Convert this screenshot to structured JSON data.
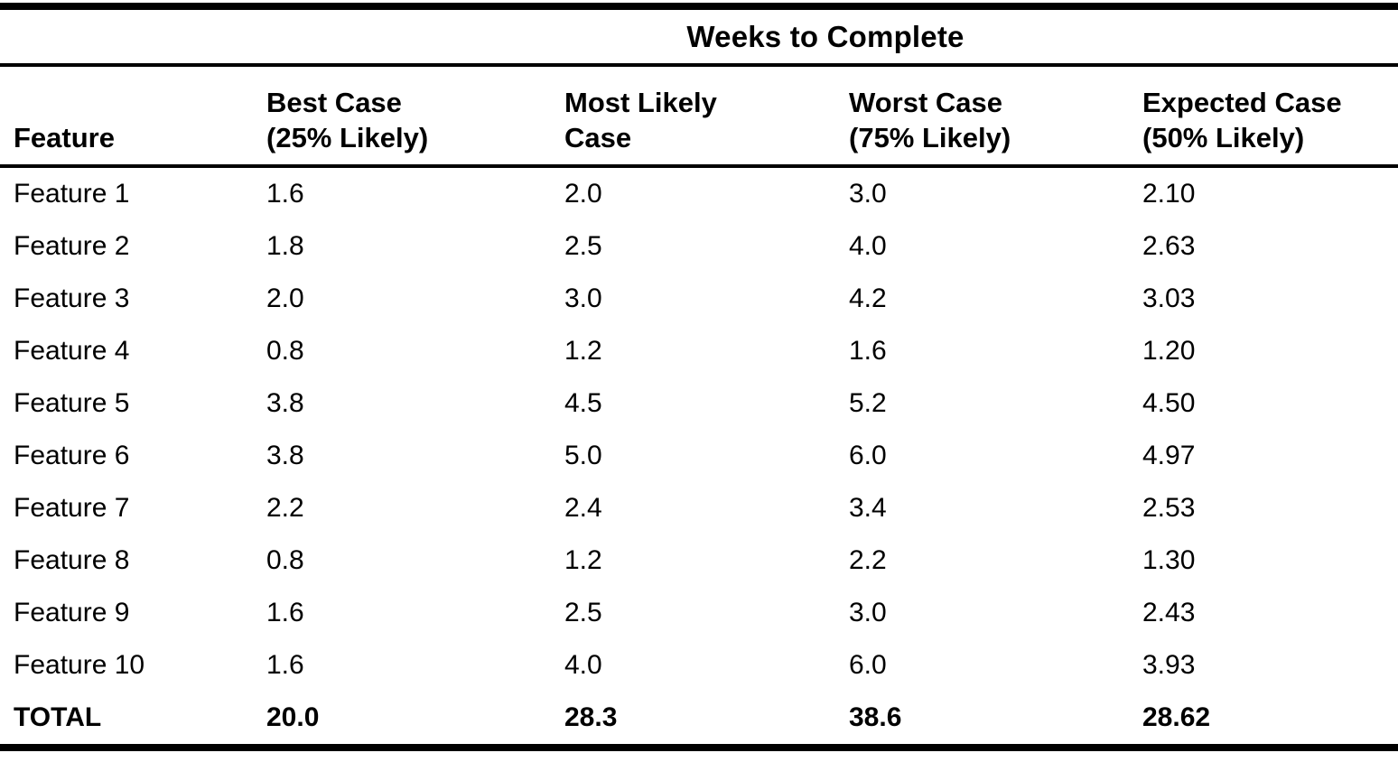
{
  "colors": {
    "background": "#ffffff",
    "text": "#000000",
    "rule": "#000000"
  },
  "table": {
    "spanning_header": "Weeks to Complete",
    "columns": [
      {
        "line1": "Feature",
        "line2": ""
      },
      {
        "line1": "Best Case",
        "line2": "(25% Likely)"
      },
      {
        "line1": "Most Likely",
        "line2": "Case"
      },
      {
        "line1": "Worst Case",
        "line2": "(75% Likely)"
      },
      {
        "line1": "Expected Case",
        "line2": "(50% Likely)"
      }
    ],
    "rows": [
      {
        "feature": "Feature 1",
        "best": "1.6",
        "most_likely": "2.0",
        "worst": "3.0",
        "expected": "2.10"
      },
      {
        "feature": "Feature 2",
        "best": "1.8",
        "most_likely": "2.5",
        "worst": "4.0",
        "expected": "2.63"
      },
      {
        "feature": "Feature 3",
        "best": "2.0",
        "most_likely": "3.0",
        "worst": "4.2",
        "expected": "3.03"
      },
      {
        "feature": "Feature 4",
        "best": "0.8",
        "most_likely": "1.2",
        "worst": "1.6",
        "expected": "1.20"
      },
      {
        "feature": "Feature 5",
        "best": "3.8",
        "most_likely": "4.5",
        "worst": "5.2",
        "expected": "4.50"
      },
      {
        "feature": "Feature 6",
        "best": "3.8",
        "most_likely": "5.0",
        "worst": "6.0",
        "expected": "4.97"
      },
      {
        "feature": "Feature 7",
        "best": "2.2",
        "most_likely": "2.4",
        "worst": "3.4",
        "expected": "2.53"
      },
      {
        "feature": "Feature 8",
        "best": "0.8",
        "most_likely": "1.2",
        "worst": "2.2",
        "expected": "1.30"
      },
      {
        "feature": "Feature 9",
        "best": "1.6",
        "most_likely": "2.5",
        "worst": "3.0",
        "expected": "2.43"
      },
      {
        "feature": "Feature 10",
        "best": "1.6",
        "most_likely": "4.0",
        "worst": "6.0",
        "expected": "3.93"
      }
    ],
    "total_row": {
      "feature": "TOTAL",
      "best": "20.0",
      "most_likely": "28.3",
      "worst": "38.6",
      "expected": "28.62"
    }
  }
}
